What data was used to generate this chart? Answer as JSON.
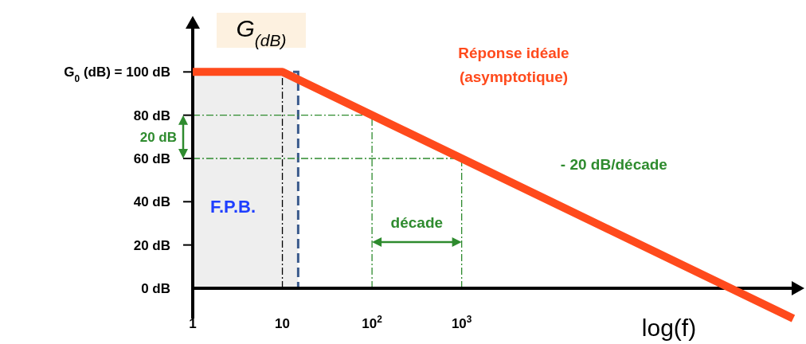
{
  "chart_data": {
    "type": "line",
    "ylabel": "G$_{(dB)}$",
    "xlabel": "log(f)",
    "log": "x",
    "x": [
      1,
      10,
      1000000,
      5000000
    ],
    "series": [
      {
        "color": "#ff4a1c",
        "values": [
          100,
          100,
          0,
          -14
        ]
      }
    ],
    "xlim": [
      1,
      5000000
    ],
    "ylim": [
      -14,
      120
    ],
    "xticks": [
      1,
      10,
      {
        "value": 100,
        "label": "10$^{2}$"
      },
      {
        "value": 1000,
        "label": "10$^{3}$"
      }
    ],
    "yticks": [
      {
        "value": 0,
        "label": "0 dB"
      },
      {
        "value": 20,
        "label": "20 dB"
      },
      {
        "value": 40,
        "label": "40 dB"
      },
      {
        "value": 60,
        "label": "60 dB"
      },
      {
        "value": 80,
        "label": "80 dB"
      },
      {
        "value": 100,
        "label": "G$_{0}$ (dB) = 100 dB"
      }
    ],
    "bands": [
      {
        "axis": "x",
        "from": 1,
        "to": 15,
        "label": "F.P.B.",
        "color": "#eeeeee"
      }
    ],
    "ref_lines": [
      {
        "axis": "x",
        "value": 10,
        "color": "#000000",
        "line_style": "dashed"
      },
      {
        "axis": "x",
        "value": 100,
        "color": "#2e8b2e",
        "line_style": "dashed"
      },
      {
        "axis": "x",
        "value": 1000,
        "color": "#2e8b2e",
        "line_style": "dashed"
      },
      {
        "axis": "y",
        "value": 80,
        "color": "#2e8b2e",
        "line_style": "dashed"
      },
      {
        "axis": "y",
        "value": 60,
        "color": "#2e8b2e",
        "line_style": "dashed"
      }
    ],
    "annotations": [
      "Réponse idéale\n(asymptotique)",
      "- 20 dB/décade",
      "décade",
      "20 dB"
    ],
    "line_style": "solid",
    "marker": "none",
    "grid": false
  }
}
